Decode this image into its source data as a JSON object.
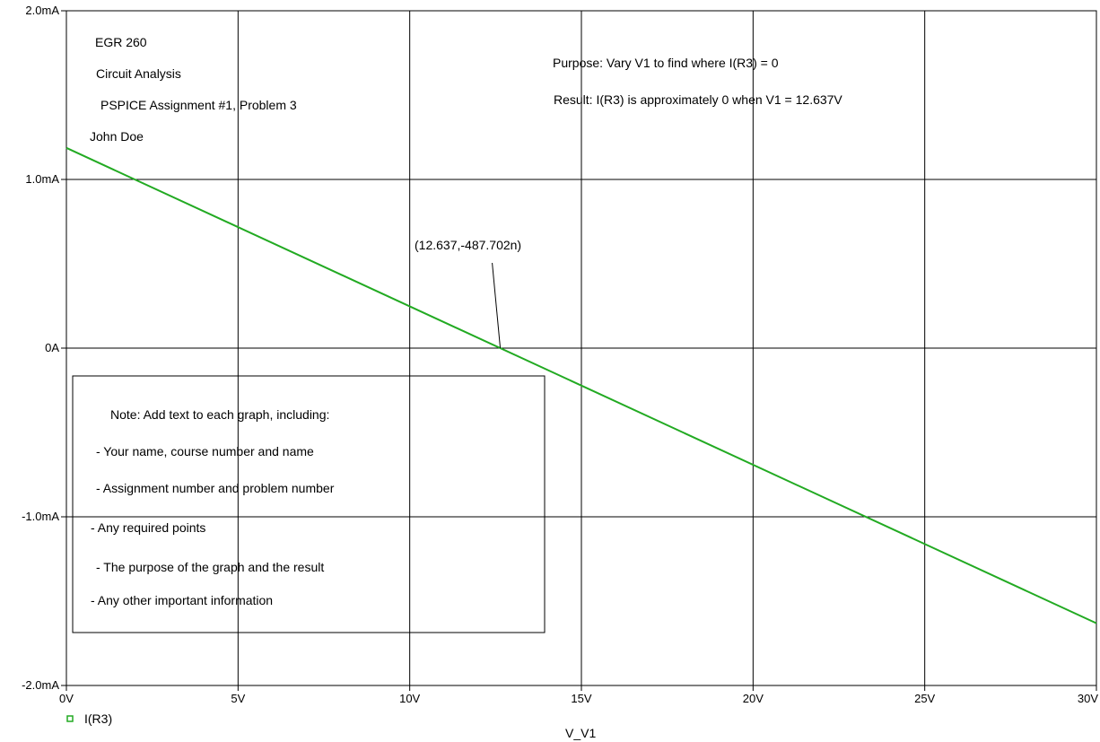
{
  "chart_data": {
    "type": "line",
    "title": "",
    "xlabel": "V_V1",
    "ylabel": "",
    "xlim": [
      0,
      30
    ],
    "ylim": [
      -2.0,
      2.0
    ],
    "y_unit": "mA",
    "grid": true,
    "x_ticks": [
      {
        "value": 0,
        "label": "0V"
      },
      {
        "value": 5,
        "label": "5V"
      },
      {
        "value": 10,
        "label": "10V"
      },
      {
        "value": 15,
        "label": "15V"
      },
      {
        "value": 20,
        "label": "20V"
      },
      {
        "value": 25,
        "label": "25V"
      },
      {
        "value": 30,
        "label": "30V"
      }
    ],
    "y_ticks": [
      {
        "value": 2.0,
        "label": "2.0mA"
      },
      {
        "value": 1.0,
        "label": "1.0mA"
      },
      {
        "value": 0,
        "label": "0A"
      },
      {
        "value": -1.0,
        "label": "-1.0mA"
      },
      {
        "value": -2.0,
        "label": "-2.0mA"
      }
    ],
    "series": [
      {
        "name": "I(R3)",
        "color": "#22aa22",
        "x": [
          0,
          30
        ],
        "y": [
          1.187,
          -1.631
        ]
      }
    ],
    "legend": {
      "placement": "bottom-left",
      "marker_color": "#22aa22"
    },
    "marker": {
      "x": 12.637,
      "y": 0,
      "label": "(12.637,-487.702n)"
    }
  },
  "annotations": {
    "header": [
      "EGR 260",
      "Circuit Analysis",
      "PSPICE Assignment #1, Problem 3",
      "John Doe"
    ],
    "purpose": "Purpose:  Vary V1 to find where I(R3) = 0",
    "result": "Result:  I(R3) is approximately 0 when V1 = 12.637V",
    "note_lines": [
      "Note:  Add text to each graph, including:",
      "- Your name, course number and name",
      "- Assignment number and problem number",
      "- Any required points",
      "- The purpose of the graph and the result",
      "- Any other important information"
    ]
  }
}
